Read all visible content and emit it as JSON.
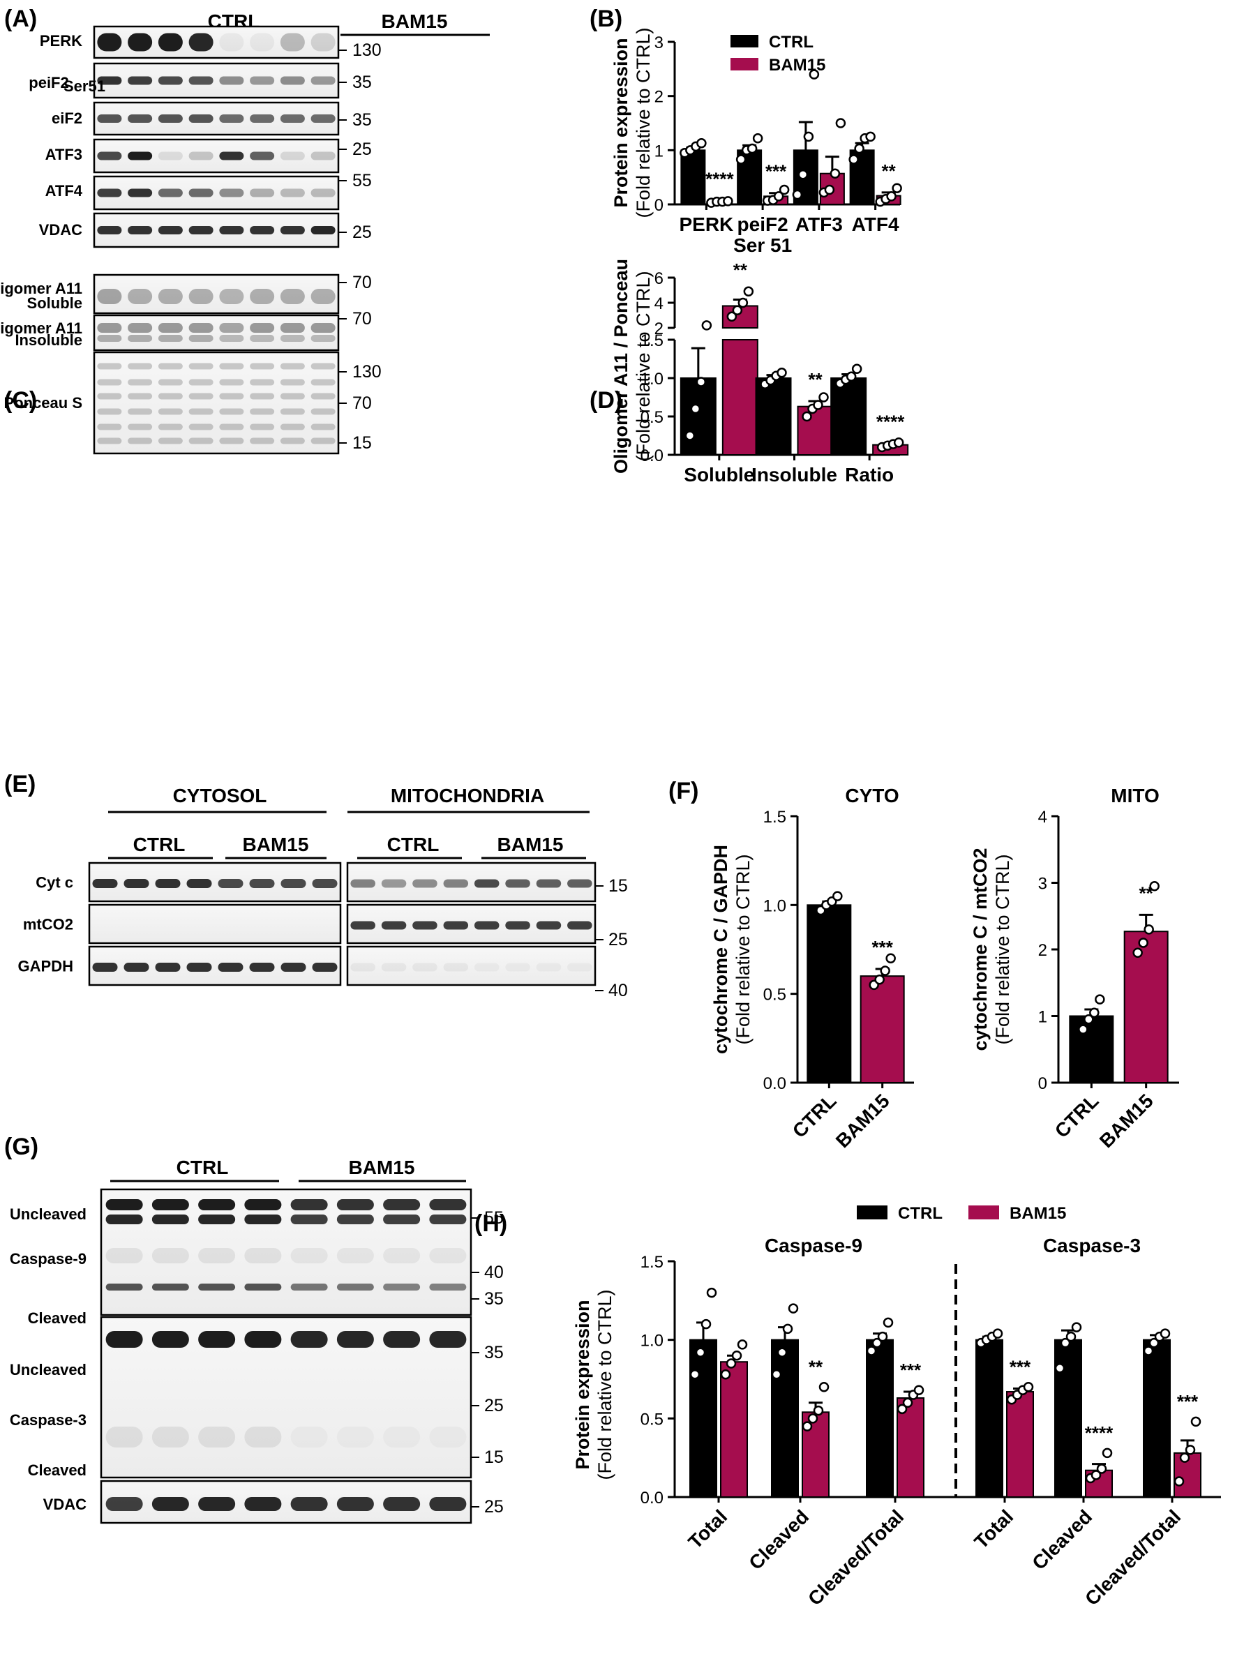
{
  "colors": {
    "ctrl": "#000000",
    "bam15": "#a50d4e",
    "blot_bg": "#f4f4f4"
  },
  "panels": {
    "A": {
      "letter": "(A)",
      "groups": [
        "CTRL",
        "BAM15"
      ],
      "rows": [
        {
          "label": "PERK",
          "sub": "",
          "mw": [
            "130"
          ]
        },
        {
          "label": "peiF2",
          "sub": "Ser51",
          "mw": [
            "35"
          ]
        },
        {
          "label": "eiF2",
          "sub": "",
          "mw": [
            "35"
          ]
        },
        {
          "label": "ATF3",
          "sub": "",
          "mw": [
            "25"
          ]
        },
        {
          "label": "ATF4",
          "sub": "",
          "mw": [
            "55"
          ]
        },
        {
          "label": "VDAC",
          "sub": "",
          "mw": [
            "25"
          ]
        }
      ]
    },
    "C": {
      "letter": "(C)",
      "rows": [
        {
          "label": "Oligomer A11",
          "sub": "Soluble",
          "mw": [
            "70"
          ]
        },
        {
          "label": "Oligomer A11",
          "sub": "Insoluble",
          "mw": [
            "70"
          ]
        },
        {
          "label": "Ponceau S",
          "sub": "",
          "mw": [
            "130",
            "70",
            "15"
          ]
        }
      ]
    },
    "E": {
      "letter": "(E)",
      "groups": [
        "CYTOSOL",
        "MITOCHONDRIA"
      ],
      "subgroups": [
        "CTRL",
        "BAM15",
        "CTRL",
        "BAM15"
      ],
      "rows": [
        {
          "label": "Cyt c",
          "mw": [
            "15"
          ]
        },
        {
          "label": "mtCO2",
          "mw": [
            "25"
          ]
        },
        {
          "label": "GAPDH",
          "mw": [
            "40"
          ]
        }
      ]
    },
    "G": {
      "letter": "(G)",
      "groups": [
        "CTRL",
        "BAM15"
      ],
      "labels": [
        "Uncleaved",
        "Caspase-9",
        "Cleaved",
        "Uncleaved",
        "Caspase-3",
        "Cleaved",
        "VDAC"
      ],
      "mw": [
        "55",
        "40",
        "35",
        "35",
        "25",
        "15",
        "25"
      ]
    }
  },
  "chart_data": [
    {
      "id": "B",
      "letter": "(B)",
      "type": "bar",
      "categories": [
        "PERK",
        "peiF2 Ser 51",
        "ATF3",
        "ATF4"
      ],
      "category_lines": [
        [
          "PERK"
        ],
        [
          "peiF2",
          "Ser 51"
        ],
        [
          "ATF3"
        ],
        [
          "ATF4"
        ]
      ],
      "series": [
        {
          "name": "CTRL",
          "values": [
            1.0,
            1.0,
            1.0,
            1.0
          ],
          "sem": [
            0.05,
            0.09,
            0.52,
            0.13
          ],
          "points": [
            [
              0.95,
              1.0,
              1.07,
              1.13
            ],
            [
              0.83,
              1.0,
              1.03,
              1.22
            ],
            [
              0.18,
              0.55,
              1.25,
              2.4
            ],
            [
              0.83,
              1.03,
              1.22,
              1.25
            ]
          ]
        },
        {
          "name": "BAM15",
          "values": [
            0.05,
            0.15,
            0.57,
            0.16
          ],
          "sem": [
            0.02,
            0.06,
            0.31,
            0.06
          ],
          "points": [
            [
              0.03,
              0.05,
              0.05,
              0.06
            ],
            [
              0.07,
              0.08,
              0.15,
              0.27
            ],
            [
              0.22,
              0.27,
              0.57,
              1.5
            ],
            [
              0.05,
              0.1,
              0.15,
              0.3
            ]
          ]
        }
      ],
      "significance": [
        "****",
        "***",
        "",
        "**"
      ],
      "ylabel_line1": "Protein expression",
      "ylabel_line2": "(Fold relative to CTRL)",
      "ylim": [
        0,
        3
      ],
      "yticks": [
        "0",
        "1",
        "2",
        "3"
      ],
      "legend": [
        "CTRL",
        "BAM15"
      ],
      "legend_position": "top-left"
    },
    {
      "id": "D",
      "letter": "(D)",
      "type": "bar",
      "broken_axis": true,
      "categories": [
        "Soluble",
        "Insoluble",
        "Ratio"
      ],
      "series": [
        {
          "name": "CTRL",
          "values": [
            1.0,
            1.0,
            1.0
          ],
          "sem": [
            0.39,
            0.04,
            0.05
          ],
          "points": [
            [
              0.25,
              0.6,
              0.95,
              2.2
            ],
            [
              0.92,
              0.97,
              1.03,
              1.07
            ],
            [
              0.93,
              0.98,
              1.02,
              1.12
            ]
          ]
        },
        {
          "name": "BAM15",
          "values": [
            3.75,
            0.63,
            0.13
          ],
          "sem": [
            0.5,
            0.07,
            0.02
          ],
          "points": [
            [
              2.9,
              3.4,
              4.0,
              4.9
            ],
            [
              0.5,
              0.6,
              0.65,
              0.75
            ],
            [
              0.1,
              0.12,
              0.14,
              0.16
            ]
          ]
        }
      ],
      "significance": [
        "**",
        "**",
        "****"
      ],
      "ylabel_line1": "Oligomer A11 / Ponceau",
      "ylabel_line2": "(Fold relative to CTRL)",
      "yticks_lower": [
        "0.0",
        "0.5",
        "1.0",
        "1.5"
      ],
      "yticks_upper": [
        "2",
        "4",
        "6"
      ],
      "ylim_lower": [
        0,
        1.5
      ],
      "ylim_upper": [
        2,
        6
      ]
    },
    {
      "id": "F1",
      "letter": "(F)",
      "type": "bar",
      "title": "CYTO",
      "categories": [
        "CTRL",
        "BAM15"
      ],
      "values": [
        1.0,
        0.6
      ],
      "sem": [
        0.02,
        0.04
      ],
      "points": [
        [
          0.97,
          1.0,
          1.02,
          1.05
        ],
        [
          0.55,
          0.58,
          0.63,
          0.7
        ]
      ],
      "significance": [
        "",
        "***"
      ],
      "ylabel_line1": "cytochrome C / GAPDH",
      "ylabel_line2": "(Fold relative to CTRL)",
      "ylim": [
        0,
        1.5
      ],
      "yticks": [
        "0.0",
        "0.5",
        "1.0",
        "1.5"
      ]
    },
    {
      "id": "F2",
      "type": "bar",
      "title": "MITO",
      "categories": [
        "CTRL",
        "BAM15"
      ],
      "values": [
        1.0,
        2.27
      ],
      "sem": [
        0.1,
        0.25
      ],
      "points": [
        [
          0.8,
          0.95,
          1.05,
          1.25
        ],
        [
          1.95,
          2.1,
          2.3,
          2.95
        ]
      ],
      "significance": [
        "",
        "**"
      ],
      "ylabel_line1": "cytochrome C / mtCO2",
      "ylabel_line2": "(Fold relative to CTRL)",
      "ylim": [
        0,
        4
      ],
      "yticks": [
        "0",
        "1",
        "2",
        "3",
        "4"
      ]
    },
    {
      "id": "H",
      "letter": "(H)",
      "type": "bar",
      "groups": [
        "Caspase-9",
        "Caspase-3"
      ],
      "categories": [
        "Total",
        "Cleaved",
        "Cleaved/Total",
        "Total",
        "Cleaved",
        "Cleaved/Total"
      ],
      "series": [
        {
          "name": "CTRL",
          "values": [
            1.0,
            1.0,
            1.0,
            1.0,
            1.0,
            1.0
          ],
          "sem": [
            0.11,
            0.08,
            0.04,
            0.02,
            0.06,
            0.03
          ],
          "points": [
            [
              0.78,
              0.92,
              1.1,
              1.3
            ],
            [
              0.78,
              0.92,
              1.07,
              1.2
            ],
            [
              0.93,
              0.98,
              1.02,
              1.11
            ],
            [
              0.98,
              1.0,
              1.02,
              1.04
            ],
            [
              0.82,
              0.98,
              1.02,
              1.08
            ],
            [
              0.93,
              0.98,
              1.02,
              1.04
            ]
          ]
        },
        {
          "name": "BAM15",
          "values": [
            0.86,
            0.54,
            0.63,
            0.67,
            0.17,
            0.28
          ],
          "sem": [
            0.04,
            0.06,
            0.04,
            0.02,
            0.04,
            0.08
          ],
          "points": [
            [
              0.78,
              0.85,
              0.9,
              0.97
            ],
            [
              0.45,
              0.5,
              0.55,
              0.7
            ],
            [
              0.56,
              0.6,
              0.65,
              0.68
            ],
            [
              0.62,
              0.65,
              0.68,
              0.7
            ],
            [
              0.12,
              0.14,
              0.18,
              0.28
            ],
            [
              0.1,
              0.25,
              0.3,
              0.48
            ]
          ]
        }
      ],
      "significance": [
        "",
        "**",
        "***",
        "***",
        "****",
        "***"
      ],
      "ylabel_line1": "Protein expression",
      "ylabel_line2": "(Fold relative to CTRL)",
      "ylim": [
        0,
        1.5
      ],
      "yticks": [
        "0.0",
        "0.5",
        "1.0",
        "1.5"
      ],
      "legend": [
        "CTRL",
        "BAM15"
      ],
      "legend_position": "top"
    }
  ]
}
